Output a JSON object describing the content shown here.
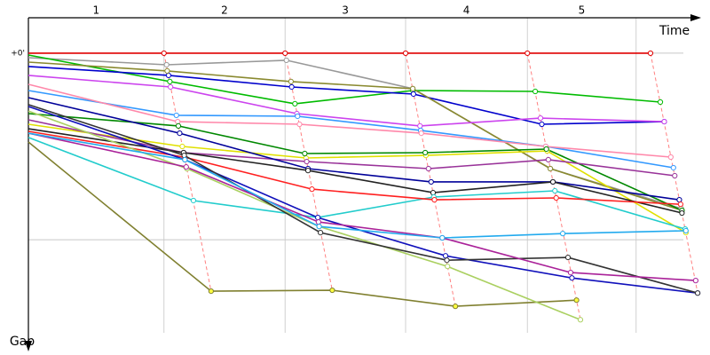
{
  "chart_data": {
    "type": "line",
    "x_label": "Time",
    "y_label": "Gap",
    "laps": [
      "1",
      "2",
      "3",
      "4",
      "5"
    ],
    "xlim": [
      0,
      103
    ],
    "xgrid": [
      20.7,
      39.2,
      57.6,
      76.2,
      92.8
    ],
    "ylim": [
      -19,
      158
    ],
    "invert_y": true,
    "ygrid": [
      0,
      100
    ],
    "yticks": [
      {
        "value": 0,
        "label": "+0'"
      }
    ],
    "series": [
      {
        "color": "#e00000",
        "x": [
          0,
          20.7,
          39.2,
          57.6,
          76.2,
          95.0
        ],
        "values": [
          0,
          0,
          0,
          0,
          0,
          0
        ]
      },
      {
        "color": "#999999",
        "x": [
          0,
          21.1,
          39.4,
          58.7,
          79.7,
          99.7
        ],
        "values": [
          2.4,
          6.2,
          3.8,
          19.0,
          61.9,
          83.3
        ]
      },
      {
        "color": "#808030",
        "x": [
          0,
          27.9,
          46.4,
          65.2,
          83.7
        ],
        "values": [
          47.6,
          127.6,
          127.1,
          135.7,
          132.4
        ]
      },
      {
        "color": "#00bb00",
        "x": [
          0,
          21.6,
          40.7,
          58.7,
          77.4,
          96.5
        ],
        "values": [
          1.0,
          15.2,
          27.1,
          20.0,
          20.5,
          26.2
        ]
      },
      {
        "color": "#0000cc",
        "x": [
          0,
          21.4,
          40.2,
          58.8,
          78.4,
          97.1
        ],
        "values": [
          7.1,
          11.9,
          18.1,
          21.9,
          38.1,
          36.7
        ]
      },
      {
        "color": "#8a8a30",
        "x": [
          0,
          21.2,
          40.1,
          58.7,
          79.7,
          99.8
        ],
        "values": [
          4.8,
          9.5,
          15.2,
          19.0,
          61.9,
          84.3
        ]
      },
      {
        "color": "#cc44ee",
        "x": [
          0,
          21.7,
          41.0,
          59.8,
          78.2,
          97.1
        ],
        "values": [
          11.9,
          18.1,
          32.4,
          39.0,
          34.8,
          36.7
        ]
      },
      {
        "color": "#3399ff",
        "x": [
          0,
          22.6,
          41.1,
          59.9,
          79.0,
          98.5
        ],
        "values": [
          20.0,
          33.3,
          33.8,
          41.4,
          50.0,
          61.4
        ]
      },
      {
        "color": "#ff88aa",
        "x": [
          0,
          22.8,
          41.4,
          60.0,
          79.0,
          98.1
        ],
        "values": [
          16.7,
          36.7,
          38.1,
          42.9,
          50.0,
          55.7
        ]
      },
      {
        "color": "#e0e000",
        "x": [
          0,
          23.5,
          42.4,
          60.7,
          79.2,
          100.4
        ],
        "values": [
          38.1,
          50.0,
          56.2,
          54.8,
          52.4,
          96.2
        ]
      },
      {
        "color": "#008800",
        "x": [
          0,
          22.9,
          42.2,
          60.6,
          79.1,
          99.8
        ],
        "values": [
          32.4,
          39.0,
          53.8,
          53.3,
          51.4,
          84.3
        ]
      },
      {
        "color": "#993399",
        "x": [
          0,
          23.7,
          42.5,
          61.1,
          79.4,
          98.7
        ],
        "values": [
          35.7,
          53.3,
          58.1,
          61.9,
          57.1,
          65.7
        ]
      },
      {
        "color": "#000099",
        "x": [
          0,
          23.1,
          42.7,
          61.5,
          80.1,
          99.4
        ],
        "values": [
          23.8,
          42.9,
          61.9,
          69.0,
          69.0,
          78.6
        ]
      },
      {
        "color": "#222222",
        "x": [
          0,
          23.7,
          42.7,
          61.8,
          80.1,
          99.8
        ],
        "values": [
          40.5,
          53.3,
          62.9,
          74.8,
          69.0,
          85.7
        ]
      },
      {
        "color": "#22cccc",
        "x": [
          0,
          25.2,
          44.2,
          61.9,
          80.4,
          100.3
        ],
        "values": [
          45.2,
          79.0,
          88.1,
          77.1,
          73.8,
          94.3
        ]
      },
      {
        "color": "#ff2020",
        "x": [
          0,
          23.8,
          43.3,
          62.0,
          80.6,
          99.6
        ],
        "values": [
          41.9,
          55.7,
          72.9,
          78.6,
          77.6,
          81.0
        ]
      },
      {
        "color": "#aad060",
        "x": [
          0,
          24.2,
          44.4,
          64.0,
          84.3
        ],
        "values": [
          31.0,
          61.9,
          92.9,
          114.3,
          142.9
        ]
      },
      {
        "color": "#1010bb",
        "x": [
          0,
          23.9,
          44.2,
          63.7,
          83.0,
          102.2
        ],
        "values": [
          28.6,
          57.1,
          88.1,
          108.6,
          120.5,
          128.6
        ]
      },
      {
        "color": "#333333",
        "x": [
          0,
          23.8,
          44.6,
          63.9,
          82.4,
          102.2
        ],
        "values": [
          27.6,
          54.8,
          96.2,
          111.0,
          109.5,
          128.6
        ]
      },
      {
        "color": "#aa2299",
        "x": [
          0,
          24.1,
          44.3,
          63.2,
          82.8,
          101.9
        ],
        "values": [
          42.9,
          61.0,
          90.5,
          99.0,
          117.6,
          121.9
        ]
      },
      {
        "color": "#22aaee",
        "x": [
          0,
          23.9,
          44.4,
          63.2,
          81.6,
          100.4
        ],
        "values": [
          42.9,
          57.1,
          92.9,
          99.0,
          96.7,
          95.2
        ]
      }
    ]
  }
}
